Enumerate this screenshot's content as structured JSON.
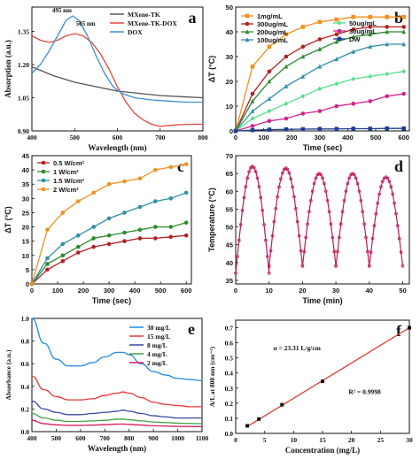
{
  "chart_data": [
    {
      "panel_label": "a",
      "type": "line",
      "xlabel": "Wavelength (nm)",
      "ylabel": "Absorption (a.u.)",
      "xlim": [
        400,
        800
      ],
      "ylim": [
        0.9,
        1.46
      ],
      "x_ticks": [
        "400",
        "500",
        "600",
        "700",
        "800"
      ],
      "y_ticks": [
        "0.90",
        "1.05",
        "1.20",
        "1.35"
      ],
      "annotations": [
        {
          "text": "495 nm",
          "x": 495,
          "y": 1.42
        },
        {
          "text": "505 nm",
          "x": 505,
          "y": 1.36
        }
      ],
      "legend_position": "top-right",
      "series": [
        {
          "name": "MXene-TK",
          "color": "#555555",
          "x": [
            400,
            450,
            500,
            550,
            600,
            650,
            700,
            750,
            800
          ],
          "y": [
            1.19,
            1.15,
            1.12,
            1.1,
            1.08,
            1.07,
            1.06,
            1.055,
            1.05
          ]
        },
        {
          "name": "MXene-TK-DOX",
          "color": "#e8453c",
          "x": [
            400,
            420,
            440,
            460,
            480,
            500,
            520,
            540,
            560,
            580,
            600,
            620,
            640,
            660,
            680,
            700,
            720,
            760,
            800
          ],
          "y": [
            1.33,
            1.31,
            1.3,
            1.31,
            1.33,
            1.34,
            1.33,
            1.3,
            1.25,
            1.18,
            1.1,
            1.03,
            0.98,
            0.95,
            0.93,
            0.92,
            0.925,
            0.93,
            0.93
          ]
        },
        {
          "name": "DOX",
          "color": "#3b8fd9",
          "x": [
            400,
            420,
            440,
            460,
            480,
            495,
            510,
            530,
            550,
            570,
            590,
            610,
            640,
            680,
            720,
            760,
            800
          ],
          "y": [
            1.16,
            1.2,
            1.26,
            1.33,
            1.4,
            1.42,
            1.4,
            1.33,
            1.24,
            1.16,
            1.1,
            1.07,
            1.05,
            1.04,
            1.035,
            1.03,
            1.03
          ]
        }
      ]
    },
    {
      "panel_label": "b",
      "type": "line",
      "xlabel": "Time (sec)",
      "ylabel": "ΔT (°C)",
      "xlim": [
        0,
        620
      ],
      "ylim": [
        0,
        50
      ],
      "x_ticks": [
        "0",
        "100",
        "200",
        "300",
        "400",
        "500",
        "600"
      ],
      "y_ticks": [
        "0",
        "10",
        "20",
        "30",
        "40",
        "50"
      ],
      "legend_position": "top",
      "x": [
        0,
        60,
        120,
        180,
        240,
        300,
        360,
        420,
        480,
        540,
        600
      ],
      "series": [
        {
          "name": "1mg/mL",
          "color": "#f0901e",
          "marker": "square",
          "values": [
            0,
            26,
            34,
            39,
            42,
            44,
            45,
            46,
            46,
            46,
            46
          ]
        },
        {
          "name": "300ug/mL",
          "color": "#b22222",
          "marker": "circle",
          "values": [
            0,
            15,
            24,
            30,
            34,
            37,
            39,
            41,
            42,
            42,
            42
          ]
        },
        {
          "name": "200ug/mL",
          "color": "#2e8b2e",
          "marker": "triangle",
          "values": [
            0,
            12,
            20,
            26,
            30,
            33,
            36,
            38,
            39,
            40,
            40
          ]
        },
        {
          "name": "100ug/mL",
          "color": "#2f8fa8",
          "marker": "triangle",
          "values": [
            0,
            8,
            13,
            18,
            22,
            26,
            29,
            32,
            34,
            35,
            35
          ]
        },
        {
          "name": "50ug/mL",
          "color": "#55e089",
          "marker": "diamond",
          "values": [
            0,
            5,
            8,
            11,
            14,
            17,
            19,
            21,
            22,
            23,
            24
          ]
        },
        {
          "name": "30ug/mL",
          "color": "#d1248a",
          "marker": "circle",
          "values": [
            0,
            2,
            4,
            5,
            7,
            8,
            10,
            11,
            12,
            14,
            15
          ]
        },
        {
          "name": "DW",
          "color": "#1f3e8c",
          "marker": "square",
          "values": [
            0,
            0.3,
            0.5,
            0.6,
            0.7,
            0.8,
            0.8,
            0.9,
            0.9,
            1,
            1
          ]
        }
      ]
    },
    {
      "panel_label": "c",
      "type": "line",
      "xlabel": "Time (sec)",
      "ylabel": "ΔT (°C)",
      "xlim": [
        0,
        620
      ],
      "ylim": [
        0,
        45
      ],
      "x_ticks": [
        "0",
        "100",
        "200",
        "300",
        "400",
        "500",
        "600"
      ],
      "y_ticks": [
        "0",
        "5",
        "10",
        "15",
        "20",
        "25",
        "30",
        "35",
        "40",
        "45"
      ],
      "legend_position": "top-left",
      "x": [
        0,
        60,
        120,
        180,
        240,
        300,
        360,
        420,
        480,
        540,
        600
      ],
      "series": [
        {
          "name": "0.5 W/cm²",
          "color": "#b22222",
          "values": [
            0,
            5,
            8,
            11,
            13,
            14,
            15,
            16,
            16,
            16.5,
            17
          ]
        },
        {
          "name": "1 W/cm²",
          "color": "#2e8b2e",
          "values": [
            0,
            7,
            10,
            13,
            16,
            17,
            18,
            19,
            20,
            20,
            21.5
          ]
        },
        {
          "name": "1.5 W/cm²",
          "color": "#2f8fa8",
          "values": [
            0,
            9,
            14,
            17,
            20,
            23,
            25,
            27,
            29,
            30,
            32
          ]
        },
        {
          "name": "2 W/cm²",
          "color": "#f0901e",
          "values": [
            0,
            19,
            25,
            29,
            32,
            35,
            36,
            37,
            40,
            41,
            42
          ]
        }
      ]
    },
    {
      "panel_label": "d",
      "type": "line",
      "xlabel": "Time (min)",
      "ylabel": "Temperature (°C)",
      "xlim": [
        0,
        52
      ],
      "ylim": [
        34,
        70
      ],
      "x_ticks": [
        "0",
        "10",
        "20",
        "30",
        "40",
        "50"
      ],
      "y_ticks": [
        "35",
        "40",
        "45",
        "50",
        "55",
        "60",
        "65",
        "70"
      ],
      "series": [
        {
          "name": "",
          "color": "#c2185b",
          "cycles": [
            {
              "start": 0,
              "end": 10,
              "base": 37,
              "peak": 67
            },
            {
              "start": 10,
              "end": 20,
              "base": 39,
              "peak": 66.5
            },
            {
              "start": 20,
              "end": 30,
              "base": 39,
              "peak": 65
            },
            {
              "start": 30,
              "end": 40,
              "base": 39,
              "peak": 65
            },
            {
              "start": 40,
              "end": 50,
              "base": 39,
              "peak": 64
            }
          ]
        }
      ]
    },
    {
      "panel_label": "e",
      "type": "line",
      "xlabel": "Wavelength (nm)",
      "ylabel": "Absorbance (a.u.)",
      "xlim": [
        400,
        1100
      ],
      "ylim": [
        0,
        1.0
      ],
      "x_ticks": [
        "400",
        "500",
        "600",
        "700",
        "800",
        "900",
        "1000",
        "1100"
      ],
      "y_ticks": [
        "0.0",
        "0.2",
        "0.4",
        "0.6",
        "0.8",
        "1.0"
      ],
      "legend_position": "top-right",
      "x": [
        400,
        450,
        500,
        550,
        600,
        650,
        700,
        750,
        775,
        800,
        850,
        900,
        950,
        1000,
        1050,
        1100
      ],
      "series": [
        {
          "name": "30 mg/L",
          "color": "#1e88e5",
          "values": [
            1.0,
            0.78,
            0.64,
            0.58,
            0.58,
            0.61,
            0.66,
            0.7,
            0.7,
            0.68,
            0.6,
            0.53,
            0.5,
            0.47,
            0.46,
            0.45
          ]
        },
        {
          "name": "15 mg/L",
          "color": "#e53935",
          "values": [
            0.49,
            0.37,
            0.31,
            0.28,
            0.28,
            0.29,
            0.32,
            0.34,
            0.35,
            0.34,
            0.3,
            0.26,
            0.24,
            0.23,
            0.22,
            0.22
          ]
        },
        {
          "name": "8 mg/L",
          "color": "#3949ab",
          "values": [
            0.27,
            0.2,
            0.17,
            0.15,
            0.15,
            0.16,
            0.17,
            0.18,
            0.19,
            0.18,
            0.16,
            0.14,
            0.13,
            0.12,
            0.12,
            0.12
          ]
        },
        {
          "name": "4 mg/L",
          "color": "#43a047",
          "values": [
            0.16,
            0.12,
            0.1,
            0.09,
            0.09,
            0.095,
            0.1,
            0.11,
            0.11,
            0.105,
            0.095,
            0.085,
            0.08,
            0.075,
            0.072,
            0.07
          ]
        },
        {
          "name": "2 mg/L",
          "color": "#d81b60",
          "values": [
            0.1,
            0.07,
            0.06,
            0.055,
            0.055,
            0.058,
            0.062,
            0.066,
            0.067,
            0.064,
            0.058,
            0.052,
            0.049,
            0.046,
            0.045,
            0.044
          ]
        }
      ]
    },
    {
      "panel_label": "f",
      "type": "scatter",
      "xlabel": "Concentration (mg/L)",
      "ylabel": "A/L at 808 nm (cm⁻¹)",
      "xlim": [
        0,
        30
      ],
      "ylim": [
        0,
        0.75
      ],
      "x_ticks": [
        "0",
        "5",
        "10",
        "15",
        "20",
        "25",
        "30"
      ],
      "y_ticks": [
        "0.0",
        "0.1",
        "0.2",
        "0.3",
        "0.4",
        "0.5",
        "0.6",
        "0.7"
      ],
      "annotations": [
        {
          "text": "α = 23.31 L/g/cm",
          "x": 6.5,
          "y": 0.55
        },
        {
          "text": "R² = 0.9998",
          "x": 19.5,
          "y": 0.26
        }
      ],
      "fit_color": "#e53935",
      "points": {
        "x": [
          2,
          4,
          8,
          15,
          30
        ],
        "y": [
          0.05,
          0.095,
          0.19,
          0.345,
          0.7
        ]
      },
      "fit": {
        "x": [
          2,
          30
        ],
        "y": [
          0.046,
          0.7
        ]
      }
    }
  ]
}
